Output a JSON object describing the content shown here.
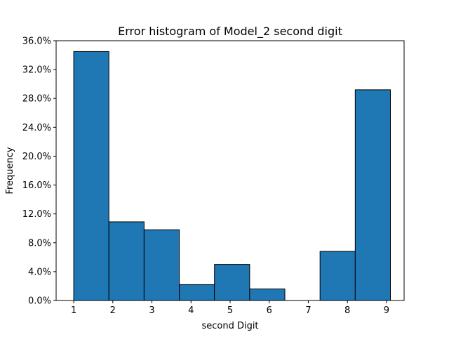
{
  "chart_data": {
    "type": "bar",
    "title": "Error histogram of Model_2 second digit",
    "xlabel": "second Digit",
    "ylabel": "Frequency",
    "bins": [
      {
        "start": 1.0,
        "end": 1.9,
        "value": 34.5
      },
      {
        "start": 1.9,
        "end": 2.8,
        "value": 10.9
      },
      {
        "start": 2.8,
        "end": 3.7,
        "value": 9.8
      },
      {
        "start": 3.7,
        "end": 4.6,
        "value": 2.2
      },
      {
        "start": 4.6,
        "end": 5.5,
        "value": 5.0
      },
      {
        "start": 5.5,
        "end": 6.4,
        "value": 1.6
      },
      {
        "start": 6.4,
        "end": 7.3,
        "value": 0.0
      },
      {
        "start": 7.3,
        "end": 8.2,
        "value": 6.8
      },
      {
        "start": 8.2,
        "end": 9.1,
        "value": 29.2
      }
    ],
    "xlim": [
      0.55,
      9.45
    ],
    "ylim": [
      0,
      36
    ],
    "xticks": [
      1,
      2,
      3,
      4,
      5,
      6,
      7,
      8,
      9
    ],
    "xtick_labels": [
      "1",
      "2",
      "3",
      "4",
      "5",
      "6",
      "7",
      "8",
      "9"
    ],
    "yticks": [
      0,
      4,
      8,
      12,
      16,
      20,
      24,
      28,
      32,
      36
    ],
    "ytick_labels": [
      "0.0%",
      "4.0%",
      "8.0%",
      "12.0%",
      "16.0%",
      "20.0%",
      "24.0%",
      "28.0%",
      "32.0%",
      "36.0%"
    ],
    "bar_color": "#1f77b4",
    "edge_color": "#000000",
    "grid": false,
    "legend": false
  }
}
